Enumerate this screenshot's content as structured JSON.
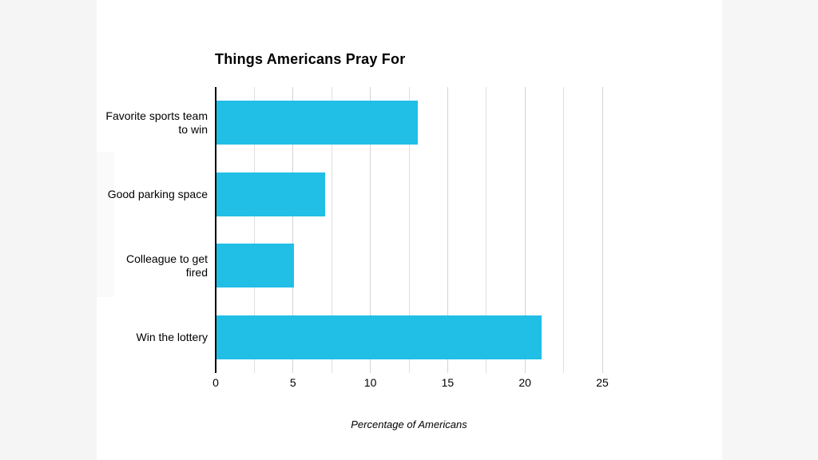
{
  "page": {
    "background_color": "#ffffff",
    "left_margin_color": "#f5f5f6",
    "right_margin_color": "#f6f6f7"
  },
  "chart_data": {
    "type": "bar",
    "orientation": "horizontal",
    "title": "Things Americans Pray For",
    "categories": [
      "Favorite sports team to win",
      "Good parking space",
      "Colleague to get fired",
      "Win the lottery"
    ],
    "values": [
      13,
      7,
      5,
      21
    ],
    "xlabel": "Percentage of Americans",
    "ylabel": "",
    "xlim": [
      0,
      25
    ],
    "x_ticks": [
      0,
      5,
      10,
      15,
      20,
      25
    ],
    "minor_grid_step": 2.5,
    "grid": true,
    "legend": false,
    "bar_color": "#21bee6",
    "major_grid_color": "#d4d4d4",
    "minor_grid_color": "#e0e0e0",
    "axis_line_color": "#000000",
    "text_color": "#000000"
  }
}
